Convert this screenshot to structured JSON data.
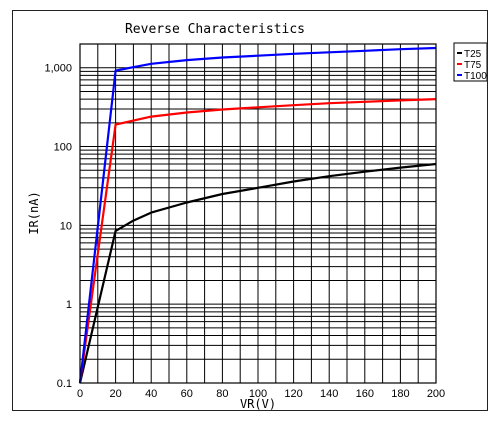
{
  "chart_data": {
    "type": "line",
    "title": "Reverse Characteristics",
    "xlabel": "VR(V)",
    "ylabel": "IR(nA)",
    "xlim": [
      0,
      200
    ],
    "ylim": [
      0.1,
      2000
    ],
    "y_scale": "log",
    "grid": true,
    "legend_position": "top-right-outside",
    "x_ticks": [
      0,
      20,
      40,
      60,
      80,
      100,
      120,
      140,
      160,
      180,
      200
    ],
    "y_ticks": [
      0.1,
      1,
      10,
      100,
      1000
    ],
    "y_tick_labels": [
      "0.1",
      "1",
      "10",
      "100",
      "1,000"
    ],
    "series": [
      {
        "name": "T25",
        "color": "#000000",
        "x": [
          0,
          20,
          30,
          40,
          60,
          80,
          100,
          120,
          140,
          160,
          180,
          200
        ],
        "y": [
          0.1,
          8.5,
          11.5,
          14.5,
          19.5,
          25,
          30,
          36,
          42,
          48,
          54,
          60
        ]
      },
      {
        "name": "T75",
        "color": "#ff0000",
        "x": [
          0,
          20,
          40,
          60,
          80,
          100,
          120,
          140,
          160,
          180,
          200
        ],
        "y": [
          0.1,
          190,
          240,
          270,
          295,
          315,
          335,
          355,
          370,
          385,
          400
        ]
      },
      {
        "name": "T100",
        "color": "#0000ff",
        "x": [
          0,
          20,
          40,
          60,
          80,
          100,
          120,
          140,
          160,
          180,
          200
        ],
        "y": [
          0.1,
          920,
          1120,
          1250,
          1350,
          1420,
          1500,
          1570,
          1640,
          1720,
          1780
        ]
      }
    ]
  }
}
